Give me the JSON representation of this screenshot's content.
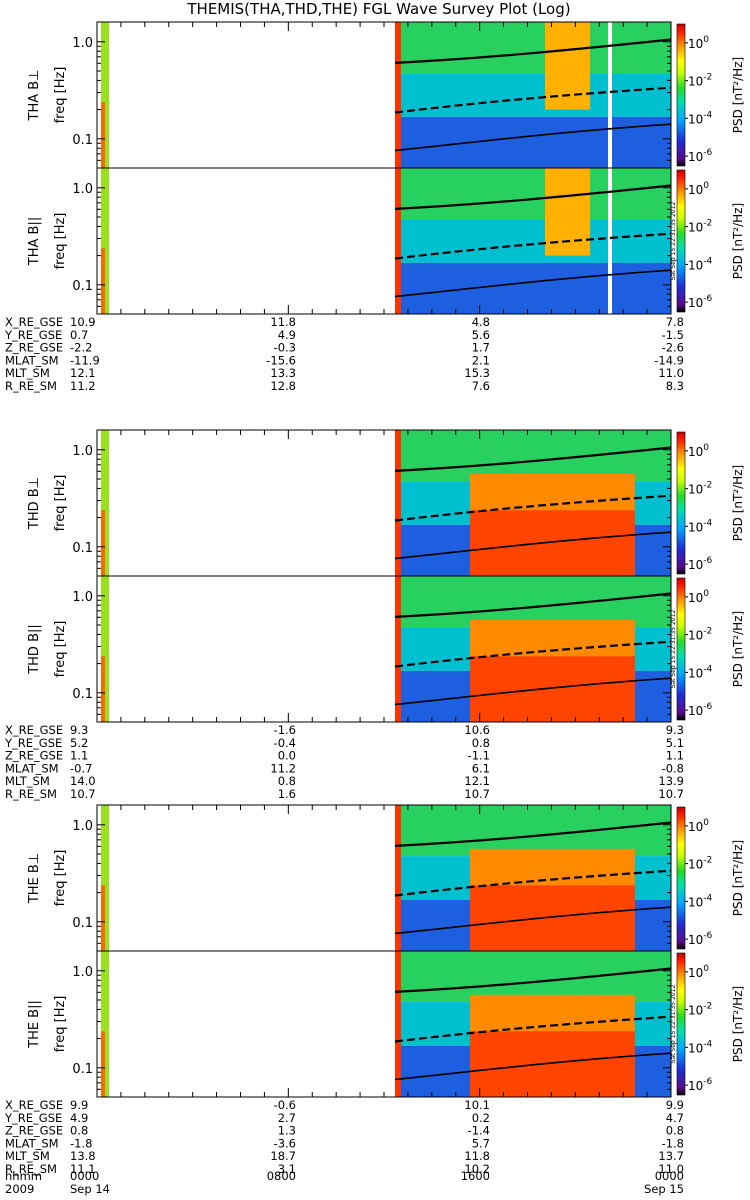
{
  "title": "THEMIS(THA,THD,THE) FGL Wave Survey Plot (Log)",
  "stamp": "Sat Sep 15 22:31:35 2012",
  "chart_data": {
    "type": "heatmap",
    "time_range": [
      "2009-09-14 00:00",
      "2009-09-15 00:00"
    ],
    "freq_scale": "log",
    "freq_ylim_hz": [
      0.05,
      1.6
    ],
    "freq_ticks": [
      "0.1",
      "1.0"
    ],
    "colorbar": {
      "label": "PSD [nT²/Hz]",
      "scale": "log",
      "range": [
        3e-07,
        10
      ],
      "ticks": [
        {
          "base": "10",
          "exp": "0"
        },
        {
          "base": "10",
          "exp": "-2"
        },
        {
          "base": "10",
          "exp": "-4"
        },
        {
          "base": "10",
          "exp": "-6"
        }
      ]
    },
    "x_axis": {
      "row_labels": [
        "hhmm",
        "2009"
      ],
      "ticks": [
        {
          "hhmm": "0000",
          "date": "Sep 14"
        },
        {
          "hhmm": "0800",
          "date": ""
        },
        {
          "hhmm": "1600",
          "date": ""
        },
        {
          "hhmm": "0000",
          "date": "Sep 15"
        }
      ]
    },
    "probes": [
      {
        "id": "THA",
        "panels": [
          {
            "ylabel": "THA B⊥",
            "freq_label": "freq [Hz]"
          },
          {
            "ylabel": "THA B||",
            "freq_label": "freq [Hz]"
          }
        ],
        "ephemeris": [
          {
            "name": "X_RE_GSE",
            "values": [
              "10.9",
              "11.8",
              "4.8",
              "7.8"
            ]
          },
          {
            "name": "Y_RE_GSE",
            "values": [
              "0.7",
              "4.9",
              "5.6",
              "-1.5"
            ]
          },
          {
            "name": "Z_RE_GSE",
            "values": [
              "-2.2",
              "-0.3",
              "1.7",
              "-2.6"
            ]
          },
          {
            "name": "MLAT_SM",
            "values": [
              "-11.9",
              "-15.6",
              "2.1",
              "-14.9"
            ]
          },
          {
            "name": "MLT_SM",
            "values": [
              "12.1",
              "13.3",
              "15.3",
              "11.0"
            ]
          },
          {
            "name": "R_RE_SM",
            "values": [
              "11.2",
              "12.8",
              "7.6",
              "8.3"
            ]
          }
        ]
      },
      {
        "id": "THD",
        "panels": [
          {
            "ylabel": "THD B⊥",
            "freq_label": "freq [Hz]"
          },
          {
            "ylabel": "THD B||",
            "freq_label": "freq [Hz]"
          }
        ],
        "ephemeris": [
          {
            "name": "X_RE_GSE",
            "values": [
              "9.3",
              "-1.6",
              "10.6",
              "9.3"
            ]
          },
          {
            "name": "Y_RE_GSE",
            "values": [
              "5.2",
              "-0.4",
              "0.8",
              "5.1"
            ]
          },
          {
            "name": "Z_RE_GSE",
            "values": [
              "1.1",
              "0.0",
              "-1.1",
              "1.1"
            ]
          },
          {
            "name": "MLAT_SM",
            "values": [
              "-0.7",
              "11.2",
              "6.1",
              "-0.8"
            ]
          },
          {
            "name": "MLT_SM",
            "values": [
              "14.0",
              "0.8",
              "12.1",
              "13.9"
            ]
          },
          {
            "name": "R_RE_SM",
            "values": [
              "10.7",
              "1.6",
              "10.7",
              "10.7"
            ]
          }
        ]
      },
      {
        "id": "THE",
        "panels": [
          {
            "ylabel": "THE B⊥",
            "freq_label": "freq [Hz]"
          },
          {
            "ylabel": "THE B||",
            "freq_label": "freq [Hz]"
          }
        ],
        "ephemeris": [
          {
            "name": "X_RE_GSE",
            "values": [
              "9.9",
              "-0.6",
              "10.1",
              "9.9"
            ]
          },
          {
            "name": "Y_RE_GSE",
            "values": [
              "4.9",
              "2.7",
              "0.2",
              "4.7"
            ]
          },
          {
            "name": "Z_RE_GSE",
            "values": [
              "0.8",
              "1.3",
              "-1.4",
              "0.8"
            ]
          },
          {
            "name": "MLAT_SM",
            "values": [
              "-1.8",
              "-3.6",
              "5.7",
              "-1.8"
            ]
          },
          {
            "name": "MLT_SM",
            "values": [
              "13.8",
              "18.7",
              "11.8",
              "13.7"
            ]
          },
          {
            "name": "R_RE_SM",
            "values": [
              "11.1",
              "3.1",
              "10.2",
              "11.0"
            ]
          }
        ]
      }
    ]
  }
}
